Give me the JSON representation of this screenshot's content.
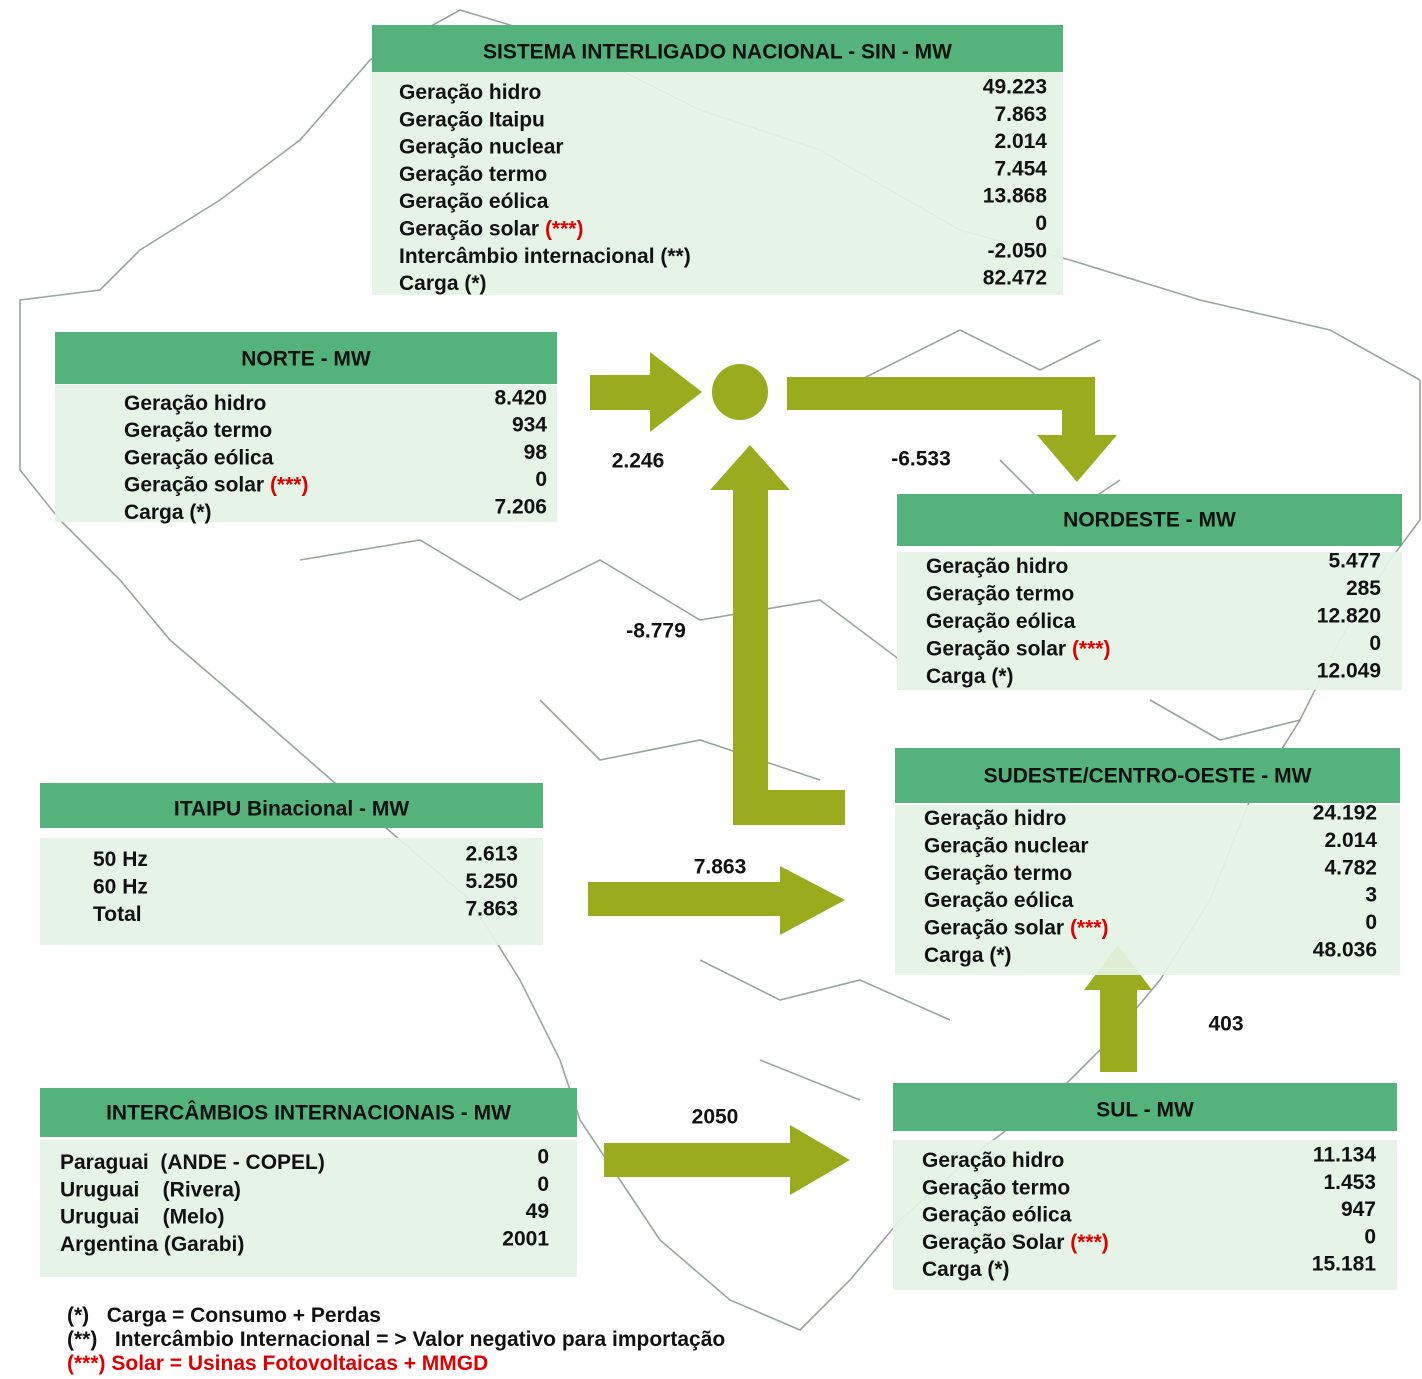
{
  "sin": {
    "title": "SISTEMA INTERLIGADO NACIONAL - SIN - MW",
    "rows": [
      {
        "label": "Geração hidro",
        "value": "49.223"
      },
      {
        "label": "Geração Itaipu",
        "value": "7.863"
      },
      {
        "label": "Geração nuclear",
        "value": "2.014"
      },
      {
        "label": "Geração termo",
        "value": "7.454"
      },
      {
        "label": "Geração eólica",
        "value": "13.868"
      },
      {
        "label": "Geração solar",
        "note": "(***)",
        "value": "0"
      },
      {
        "label": "Intercâmbio internacional (**)",
        "value": "-2.050"
      },
      {
        "label": "Carga (*)",
        "value": "82.472"
      }
    ]
  },
  "norte": {
    "title": "NORTE - MW",
    "rows": [
      {
        "label": "Geração hidro",
        "value": "8.420"
      },
      {
        "label": "Geração termo",
        "value": "934"
      },
      {
        "label": "Geração eólica",
        "value": "98"
      },
      {
        "label": "Geração solar",
        "note": "(***)",
        "value": "0"
      },
      {
        "label": "Carga (*)",
        "value": "7.206"
      }
    ]
  },
  "nordeste": {
    "title": "NORDESTE - MW",
    "rows": [
      {
        "label": "Geração hidro",
        "value": "5.477"
      },
      {
        "label": "Geração termo",
        "value": "285"
      },
      {
        "label": "Geração eólica",
        "value": "12.820"
      },
      {
        "label": "Geração solar",
        "note": "(***)",
        "value": "0"
      },
      {
        "label": "Carga (*)",
        "value": "12.049"
      }
    ]
  },
  "sudeste": {
    "title": "SUDESTE/CENTRO-OESTE - MW",
    "rows": [
      {
        "label": "Geração hidro",
        "value": "24.192"
      },
      {
        "label": "Geração nuclear",
        "value": "2.014"
      },
      {
        "label": "Geração termo",
        "value": "4.782"
      },
      {
        "label": "Geração eólica",
        "value": "3"
      },
      {
        "label": "Geração solar",
        "note": "(***)",
        "value": "0"
      },
      {
        "label": "Carga (*)",
        "value": "48.036"
      }
    ]
  },
  "itaipu": {
    "title": "ITAIPU Binacional - MW",
    "rows": [
      {
        "label": "50 Hz",
        "value": "2.613"
      },
      {
        "label": "60 Hz",
        "value": "5.250"
      },
      {
        "label": "Total",
        "value": "7.863"
      }
    ]
  },
  "intercambios": {
    "title": "INTERCÂMBIOS INTERNACIONAIS - MW",
    "rows": [
      {
        "label": "Paraguai  (ANDE - COPEL)",
        "value": "0"
      },
      {
        "label": "Uruguai    (Rivera)",
        "value": "0"
      },
      {
        "label": "Uruguai    (Melo)",
        "value": "49"
      },
      {
        "label": "Argentina (Garabi)",
        "value": "2001"
      }
    ]
  },
  "sul": {
    "title": "SUL - MW",
    "rows": [
      {
        "label": "Geração hidro",
        "value": "11.134"
      },
      {
        "label": "Geração termo",
        "value": "1.453"
      },
      {
        "label": "Geração eólica",
        "value": "947"
      },
      {
        "label": "Geração Solar",
        "note": "(***)",
        "value": "0"
      },
      {
        "label": "Carga (*)",
        "value": "15.181"
      }
    ]
  },
  "flows": [
    "2.246",
    "-6.533",
    "-8.779",
    "7.863",
    "2050",
    "403"
  ],
  "footnotes": [
    {
      "mark": "(*)",
      "text": "Carga = Consumo + Perdas"
    },
    {
      "mark": "(**)",
      "text": "Intercâmbio Internacional = > Valor negativo para importação"
    },
    {
      "mark": "(***)",
      "text": "Solar = Usinas Fotovoltaicas + MMGD"
    }
  ]
}
